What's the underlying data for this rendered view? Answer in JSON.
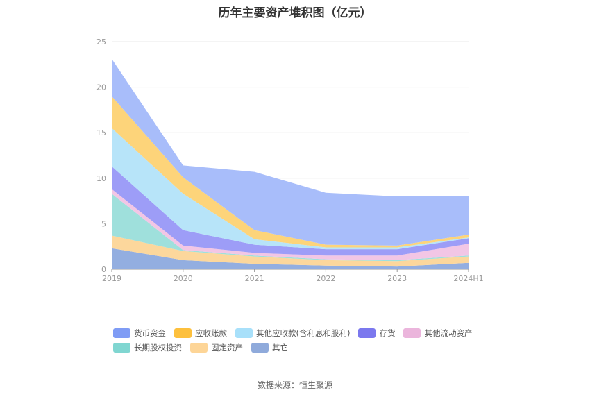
{
  "chart_data": {
    "type": "area",
    "title": "历年主要资产堆积图（亿元）",
    "x": [
      "2019",
      "2020",
      "2021",
      "2022",
      "2023",
      "2024H1"
    ],
    "ylim": [
      0,
      25
    ],
    "yticks": [
      "0",
      "5",
      "10",
      "15",
      "20",
      "25"
    ],
    "grid": true,
    "stacked": true,
    "legend_position": "bottom",
    "series": [
      {
        "name": "其它",
        "color": "#93aee0",
        "values": [
          2.3,
          1.0,
          0.6,
          0.4,
          0.3,
          0.7
        ]
      },
      {
        "name": "固定资产",
        "color": "#fcd79c",
        "values": [
          1.4,
          1.0,
          0.8,
          0.6,
          0.6,
          0.7
        ]
      },
      {
        "name": "长期股权投资",
        "color": "#9fe0dc",
        "values": [
          4.6,
          0.1,
          0.1,
          0.1,
          0.1,
          0.1
        ]
      },
      {
        "name": "其他流动资产",
        "color": "#f2c6e5",
        "values": [
          0.5,
          0.5,
          0.3,
          0.4,
          0.5,
          1.3
        ]
      },
      {
        "name": "存货",
        "color": "#9d9df7",
        "values": [
          2.5,
          1.7,
          0.9,
          0.7,
          0.7,
          0.6
        ]
      },
      {
        "name": "其他应收款(含利息和股利)",
        "color": "#b7e4f9",
        "values": [
          4.2,
          4.0,
          0.6,
          0.2,
          0.2,
          0.1
        ]
      },
      {
        "name": "应收账款",
        "color": "#fdd47a",
        "values": [
          3.5,
          1.8,
          1.0,
          0.3,
          0.2,
          0.3
        ]
      },
      {
        "name": "货币资金",
        "color": "#a8bdfa",
        "values": [
          4.1,
          1.3,
          6.4,
          5.7,
          5.4,
          4.2
        ]
      }
    ]
  },
  "legend": {
    "rows": [
      [
        {
          "name": "货币资金",
          "color": "#7f9cf5"
        },
        {
          "name": "应收账款",
          "color": "#fdc03d"
        },
        {
          "name": "其他应收款(含利息和股利)",
          "color": "#a8e0fa"
        },
        {
          "name": "存货",
          "color": "#7b78ee"
        },
        {
          "name": "其他流动资产",
          "color": "#ebb5dc"
        }
      ],
      [
        {
          "name": "长期股权投资",
          "color": "#80d6d1"
        },
        {
          "name": "固定资产",
          "color": "#fdd597"
        },
        {
          "name": "其它",
          "color": "#8faadb"
        }
      ]
    ]
  },
  "source": "数据来源：恒生聚源"
}
